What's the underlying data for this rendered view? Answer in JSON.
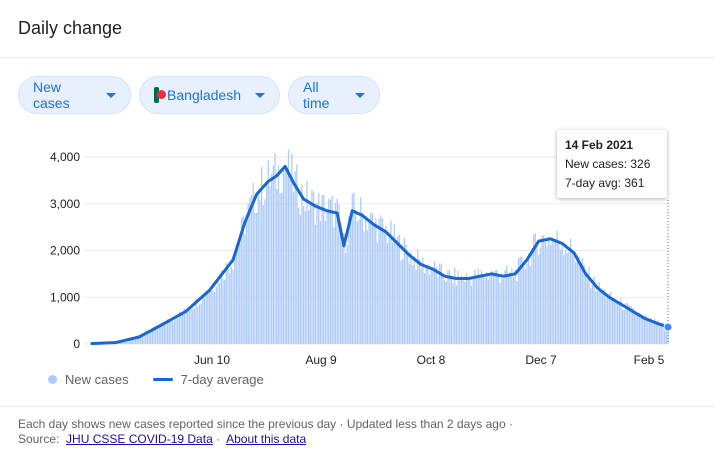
{
  "title": "Daily change",
  "filters": {
    "metric": "New cases",
    "country": "Bangladesh",
    "range": "All time"
  },
  "tooltip": {
    "date": "14 Feb 2021",
    "new_cases": "New cases: 326",
    "avg": "7-day avg: 361"
  },
  "legend": {
    "bars": "New cases",
    "line": "7-day average"
  },
  "footer": {
    "note": "Each day shows new cases reported since the previous day · Updated less than 2 days ago ·",
    "source_label": "Source:",
    "source_link": "JHU CSSE COVID-19 Data",
    "about_link": "About this data"
  },
  "colors": {
    "bars": "#aecbfa",
    "line": "#1967d2",
    "marker": "#4285f4"
  },
  "chart_data": {
    "type": "bar",
    "ylim": [
      0,
      4000
    ],
    "yticks": [
      0,
      1000,
      2000,
      3000,
      4000
    ],
    "ytick_labels": [
      "0",
      "1,000",
      "2,000",
      "3,000",
      "4,000"
    ],
    "xtick_labels": [
      "Jun 10",
      "Aug 9",
      "Oct 8",
      "Dec 7",
      "Feb 5"
    ],
    "series": [
      {
        "name": "7-day average",
        "type": "line",
        "x": [
          "2020-03-08",
          "2020-03-22",
          "2020-04-05",
          "2020-04-19",
          "2020-05-03",
          "2020-05-17",
          "2020-05-31",
          "2020-06-07",
          "2020-06-14",
          "2020-06-21",
          "2020-06-26",
          "2020-07-01",
          "2020-07-06",
          "2020-07-12",
          "2020-07-19",
          "2020-07-26",
          "2020-08-01",
          "2020-08-05",
          "2020-08-10",
          "2020-08-16",
          "2020-08-23",
          "2020-08-30",
          "2020-09-06",
          "2020-09-13",
          "2020-09-20",
          "2020-09-27",
          "2020-10-04",
          "2020-10-11",
          "2020-10-18",
          "2020-10-25",
          "2020-11-01",
          "2020-11-08",
          "2020-11-15",
          "2020-11-22",
          "2020-11-29",
          "2020-12-06",
          "2020-12-13",
          "2020-12-20",
          "2020-12-27",
          "2021-01-03",
          "2021-01-10",
          "2021-01-17",
          "2021-01-24",
          "2021-01-31",
          "2021-02-07",
          "2021-02-14"
        ],
        "values": [
          10,
          30,
          150,
          420,
          700,
          1150,
          1800,
          2600,
          3200,
          3480,
          3600,
          3800,
          3450,
          3100,
          2950,
          2850,
          2800,
          2100,
          2850,
          2750,
          2550,
          2400,
          2150,
          1900,
          1700,
          1600,
          1450,
          1400,
          1400,
          1450,
          1500,
          1450,
          1500,
          1800,
          2200,
          2250,
          2150,
          1950,
          1500,
          1200,
          1000,
          850,
          700,
          550,
          450,
          361
        ]
      }
    ]
  }
}
